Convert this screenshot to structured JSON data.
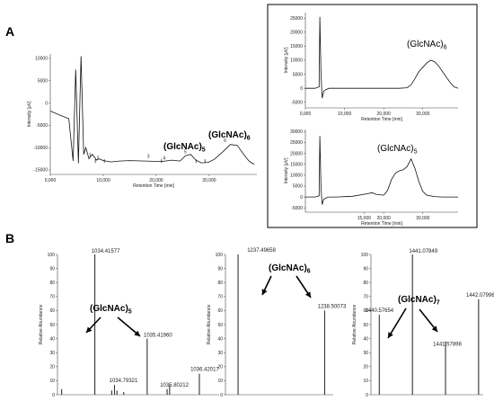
{
  "panels": [
    {
      "letter": "A"
    },
    {
      "letter": "B"
    }
  ],
  "chart_data": [
    {
      "type": "line",
      "ylabel": "Intensity [µV]",
      "xlabel": "Retention Time [min]",
      "xticks": [
        "0,000",
        "10,000",
        "20,000",
        "30,000"
      ],
      "yticks": [
        "10000",
        "5000",
        "0",
        "-5000",
        "-10000",
        "-15000"
      ],
      "xlim": [
        0,
        39000
      ],
      "ylim": [
        -16000,
        11000
      ],
      "series": [
        {
          "x": [
            0,
            2000,
            3500,
            4300,
            4800,
            5300,
            5800,
            6300,
            6700,
            7300,
            7600,
            7900,
            8400,
            8700,
            9200,
            9800,
            10500,
            11500,
            13000,
            15000,
            18000,
            21000,
            23000,
            24500,
            25500,
            26500,
            27500,
            28500,
            29800,
            31000,
            32500,
            34000,
            35300,
            36500,
            37500,
            38000,
            38500
          ],
          "y": [
            -1800,
            -2800,
            -3500,
            -13000,
            7500,
            -13500,
            10500,
            -11500,
            -10000,
            -12500,
            -12000,
            -11500,
            -12200,
            -12800,
            -12500,
            -12800,
            -13000,
            -13200,
            -13000,
            -12900,
            -13000,
            -13100,
            -12800,
            -13000,
            -11800,
            -11500,
            -12800,
            -13400,
            -13300,
            -12600,
            -11000,
            -9300,
            -9500,
            -11500,
            -13000,
            -13400,
            -13700
          ]
        }
      ],
      "markers": [
        "1",
        "2",
        "3",
        "4",
        "5",
        "6"
      ],
      "annotations": [
        {
          "text": "(GlcNAc)",
          "sub": "5"
        },
        {
          "text": "(GlcNAc)",
          "sub": "6"
        }
      ]
    },
    {
      "type": "line",
      "ylabel": "Intensity [µV]",
      "xlabel": "Retention Time [min]",
      "xticks": [
        "0,000",
        "10,000",
        "20,000",
        "30,000"
      ],
      "yticks": [
        "25000",
        "20000",
        "15000",
        "10000",
        "5000",
        "0",
        "-5000"
      ],
      "xlim": [
        0,
        39000
      ],
      "ylim": [
        -7000,
        27000
      ],
      "series": [
        {
          "x": [
            0,
            2500,
            3500,
            3700,
            4000,
            4300,
            4700,
            5200,
            6000,
            8000,
            14000,
            20000,
            24000,
            26000,
            27000,
            28000,
            29000,
            30000,
            31000,
            32000,
            33000,
            34000,
            35000,
            36000,
            37000,
            38000,
            39000
          ],
          "y": [
            0,
            0,
            500,
            25500,
            5000,
            -3500,
            -1000,
            -500,
            0,
            0,
            0,
            0,
            0,
            200,
            1200,
            3500,
            6000,
            7500,
            9000,
            10000,
            9500,
            8000,
            6000,
            4000,
            2000,
            500,
            0
          ]
        }
      ],
      "annotations": [
        {
          "text": "(GlcNAc)",
          "sub": "6"
        }
      ]
    },
    {
      "type": "line",
      "ylabel": "Intensity [µV]",
      "xlabel": "Retention Time [min]",
      "xticks": [
        "15,000",
        "20,000",
        "30,000"
      ],
      "yticks": [
        "30000",
        "25000",
        "20000",
        "15000",
        "10000",
        "5000",
        "0",
        "-5000"
      ],
      "xlim": [
        0,
        39000
      ],
      "ylim": [
        -7000,
        31000
      ],
      "series": [
        {
          "x": [
            0,
            2500,
            3500,
            3700,
            4000,
            4300,
            4700,
            5200,
            6000,
            8000,
            12000,
            16000,
            17000,
            18000,
            19000,
            20000,
            21000,
            22000,
            23000,
            24000,
            25000,
            26000,
            27000,
            28000,
            29000,
            30000,
            31000,
            33000,
            35000,
            37000,
            39000
          ],
          "y": [
            0,
            0,
            500,
            28000,
            4000,
            -3500,
            -1000,
            -500,
            0,
            0,
            300,
            1500,
            2000,
            1200,
            1000,
            800,
            3000,
            8000,
            11000,
            12000,
            12500,
            14000,
            17500,
            13000,
            7000,
            2500,
            800,
            200,
            0,
            0,
            0
          ]
        }
      ],
      "annotations": [
        {
          "text": "(GlcNAc)",
          "sub": "5"
        }
      ]
    },
    {
      "type": "bar",
      "ylabel": "Relative Abundance",
      "yticks": [
        "100",
        "90",
        "80",
        "70",
        "60",
        "50",
        "40",
        "30",
        "20",
        "10",
        "0"
      ],
      "ylim": [
        0,
        100
      ],
      "xlim": [
        1033.7,
        1036.8
      ],
      "x": [
        1033.78,
        1034.41577,
        1034.74,
        1034.79321,
        1034.84,
        1034.97,
        1035.4196,
        1035.80212,
        1035.85,
        1036.42017
      ],
      "values": [
        4,
        100,
        3,
        7,
        3,
        2,
        40,
        4,
        7,
        15
      ],
      "labels": [
        "",
        "1034.41577",
        "",
        "1034.79321",
        "",
        "",
        "1035.41960",
        "1035.80212",
        "",
        "1036.42017"
      ],
      "annotations": [
        {
          "text": "(GlcNAc)",
          "sub": "5"
        }
      ]
    },
    {
      "type": "bar",
      "ylabel": "Relative Abundance",
      "yticks": [
        "100",
        "90",
        "80",
        "70",
        "60",
        "50",
        "40",
        "30",
        "20",
        "10",
        "0"
      ],
      "ylim": [
        0,
        100
      ],
      "xlim": [
        1237.35,
        1238.6
      ],
      "x": [
        1237.49658,
        1238.50073
      ],
      "values": [
        100,
        60
      ],
      "labels": [
        "1237.49658",
        "1238.50073"
      ],
      "annotations": [
        {
          "text": "(GlcNAc)",
          "sub": "6"
        }
      ]
    },
    {
      "type": "bar",
      "ylabel": "Relative Abundance",
      "yticks": [
        "100",
        "90",
        "80",
        "70",
        "60",
        "50",
        "40",
        "30",
        "20",
        "10",
        "0"
      ],
      "ylim": [
        0,
        100
      ],
      "xlim": [
        1440.45,
        1442.15
      ],
      "x": [
        1440.57654,
        1441.07849,
        1441.57898,
        1442.07996
      ],
      "values": [
        57,
        100,
        38,
        68
      ],
      "labels": [
        "1440.57654",
        "1441.07849",
        "1441.57898",
        "1442.07996"
      ],
      "annotations": [
        {
          "text": "(GlcNAc)",
          "sub": "7"
        }
      ]
    }
  ]
}
